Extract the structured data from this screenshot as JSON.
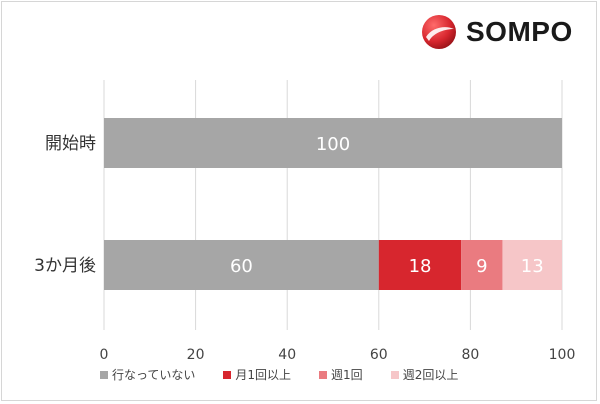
{
  "logo": {
    "text": "SOMPO",
    "icon": "sompo-logo-icon"
  },
  "chart_data": {
    "type": "bar",
    "orientation": "horizontal",
    "stacked": true,
    "categories": [
      "開始時",
      "3か月後"
    ],
    "series": [
      {
        "name": "行なっていない",
        "values": [
          100,
          60
        ],
        "color": "#a6a6a6"
      },
      {
        "name": "月1回以上",
        "values": [
          0,
          18
        ],
        "color": "#d7262e"
      },
      {
        "name": "週1回",
        "values": [
          0,
          9
        ],
        "color": "#ea7b80"
      },
      {
        "name": "週2回以上",
        "values": [
          0,
          13
        ],
        "color": "#f6c6c8"
      }
    ],
    "xlim": [
      0,
      100
    ],
    "x_ticks": [
      0,
      20,
      40,
      60,
      80,
      100
    ],
    "grid": true,
    "legend_position": "bottom",
    "title": "",
    "xlabel": "",
    "ylabel": ""
  }
}
